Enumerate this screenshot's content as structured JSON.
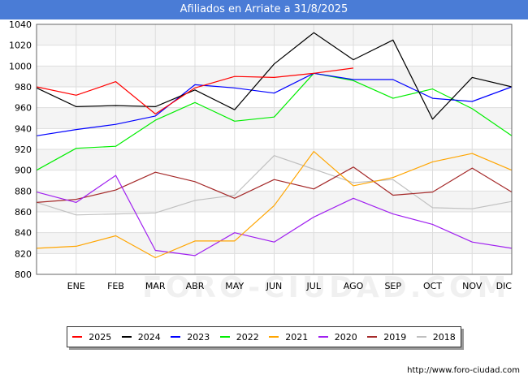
{
  "title": "Afiliados en Arriate a 31/8/2025",
  "source": "http://www.foro-ciudad.com",
  "watermark": "FORO-CIUDAD.COM",
  "chart_data": {
    "type": "line",
    "title": "Afiliados en Arriate a 31/8/2025",
    "xlabel": "",
    "ylabel": "",
    "categories": [
      "",
      "ENE",
      "FEB",
      "MAR",
      "ABR",
      "MAY",
      "JUN",
      "JUL",
      "AGO",
      "SEP",
      "OCT",
      "NOV",
      "DIC"
    ],
    "ylim": [
      800,
      1040
    ],
    "yticks": [
      800,
      820,
      840,
      860,
      880,
      900,
      920,
      940,
      960,
      980,
      1000,
      1020,
      1040
    ],
    "grid": true,
    "legend_position": "bottom",
    "series": [
      {
        "name": "2025",
        "color": "#ff0000",
        "values": [
          980,
          972,
          985,
          954,
          979,
          990,
          989,
          993,
          998,
          null,
          null,
          null,
          null
        ]
      },
      {
        "name": "2024",
        "color": "#000000",
        "values": [
          979,
          961,
          962,
          961,
          977,
          958,
          1002,
          1032,
          1006,
          1025,
          949,
          989,
          980
        ]
      },
      {
        "name": "2023",
        "color": "#0000ff",
        "values": [
          933,
          939,
          944,
          952,
          982,
          979,
          974,
          993,
          987,
          987,
          969,
          966,
          980
        ]
      },
      {
        "name": "2022",
        "color": "#00ee00",
        "values": [
          900,
          921,
          923,
          948,
          965,
          947,
          951,
          993,
          986,
          969,
          978,
          959,
          933
        ]
      },
      {
        "name": "2021",
        "color": "#ffa500",
        "values": [
          825,
          827,
          837,
          816,
          832,
          832,
          866,
          918,
          885,
          893,
          908,
          916,
          900
        ]
      },
      {
        "name": "2020",
        "color": "#a020f0",
        "values": [
          879,
          869,
          895,
          823,
          818,
          840,
          831,
          855,
          873,
          858,
          848,
          831,
          825
        ]
      },
      {
        "name": "2019",
        "color": "#a52a2a",
        "values": [
          869,
          872,
          881,
          898,
          889,
          873,
          891,
          882,
          903,
          876,
          879,
          902,
          879
        ]
      },
      {
        "name": "2018",
        "color": "#c0c0c0",
        "values": [
          869,
          857,
          858,
          859,
          871,
          876,
          914,
          901,
          888,
          891,
          864,
          863,
          870
        ]
      }
    ]
  }
}
